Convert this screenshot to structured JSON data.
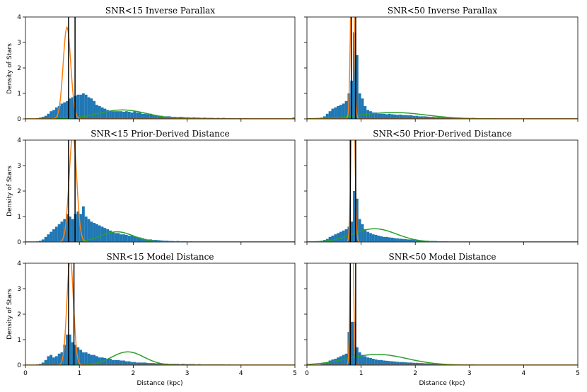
{
  "figure": {
    "ylabel": "Density of Stars",
    "xlabel": "Distance (kpc)",
    "xlim": [
      0,
      5
    ],
    "ylim": [
      0,
      4
    ],
    "xticks": [
      0,
      1,
      2,
      3,
      4,
      5
    ],
    "yticks": [
      0,
      1,
      2,
      3,
      4
    ],
    "colors": {
      "hist": "#1f77b4",
      "cluster": "#ff7f0e",
      "field": "#2ca02c",
      "marker": "#000000"
    }
  },
  "chart_data": [
    {
      "type": "bar",
      "title": "SNR<15 Inverse Parallax",
      "bin_start": 0.2,
      "bin_width": 0.05,
      "values": [
        0.03,
        0.05,
        0.08,
        0.12,
        0.2,
        0.3,
        0.35,
        0.45,
        0.5,
        0.6,
        0.65,
        0.7,
        0.8,
        0.85,
        0.9,
        0.95,
        0.95,
        1.0,
        0.95,
        0.85,
        0.8,
        0.7,
        0.55,
        0.5,
        0.45,
        0.4,
        0.35,
        0.3,
        0.3,
        0.3,
        0.3,
        0.3,
        0.28,
        0.3,
        0.28,
        0.25,
        0.3,
        0.25,
        0.25,
        0.2,
        0.2,
        0.18,
        0.2,
        0.15,
        0.15,
        0.12,
        0.12,
        0.1,
        0.1,
        0.1,
        0.08,
        0.08,
        0.07,
        0.08,
        0.07,
        0.06,
        0.06,
        0.05,
        0.06,
        0.05,
        0.05,
        0.04,
        0.05,
        0.04,
        0.04,
        0.04,
        0.03,
        0.04,
        0.03,
        0.04,
        0.03,
        0.03,
        0.03,
        0.03,
        0.02,
        0.03,
        0.02,
        0.03,
        0.02,
        0.02,
        0.02,
        0.02,
        0.02,
        0.02,
        0.02,
        0.02,
        0.02,
        0.02,
        0.02,
        0.02,
        0.02,
        0.02,
        0.02,
        0.02,
        0.02,
        0.05
      ],
      "cluster_gaussian": {
        "amplitude": 3.6,
        "mean": 0.77,
        "sigma": 0.07
      },
      "field_gaussian": {
        "amplitude": 0.35,
        "mean": 1.8,
        "sigma": 0.45
      },
      "markers": [
        0.8,
        0.92
      ]
    },
    {
      "type": "bar",
      "title": "SNR<50 Inverse Parallax",
      "bin_start": 0.2,
      "bin_width": 0.05,
      "values": [
        0.03,
        0.05,
        0.1,
        0.2,
        0.3,
        0.4,
        0.45,
        0.5,
        0.55,
        0.6,
        0.7,
        1.0,
        1.5,
        3.4,
        2.5,
        1.0,
        0.8,
        0.5,
        0.35,
        0.3,
        0.25,
        0.25,
        0.2,
        0.2,
        0.2,
        0.18,
        0.2,
        0.18,
        0.17,
        0.16,
        0.17,
        0.15,
        0.15,
        0.14,
        0.14,
        0.12,
        0.12,
        0.1,
        0.1,
        0.1,
        0.09,
        0.08,
        0.08,
        0.07,
        0.07,
        0.06,
        0.06,
        0.05,
        0.05,
        0.05,
        0.05,
        0.04,
        0.05,
        0.04,
        0.04,
        0.04,
        0.03,
        0.04,
        0.03,
        0.03,
        0.03,
        0.03,
        0.03,
        0.03,
        0.02,
        0.03,
        0.02,
        0.02,
        0.02,
        0.02,
        0.02,
        0.02,
        0.02,
        0.02,
        0.02,
        0.02,
        0.02,
        0.02,
        0.02,
        0.02,
        0.02,
        0.02,
        0.02,
        0.02,
        0.02,
        0.02,
        0.02,
        0.02,
        0.02,
        0.02,
        0.02,
        0.02,
        0.02,
        0.02,
        0.02,
        0.02
      ],
      "cluster_gaussian": {
        "amplitude": 8.0,
        "mean": 0.84,
        "sigma": 0.03
      },
      "field_gaussian": {
        "amplitude": 0.25,
        "mean": 1.6,
        "sigma": 0.6
      },
      "markers": [
        0.82,
        0.9
      ]
    },
    {
      "type": "bar",
      "title": "SNR<15 Prior-Derived Distance",
      "bin_start": 0.2,
      "bin_width": 0.05,
      "values": [
        0.03,
        0.05,
        0.1,
        0.2,
        0.3,
        0.4,
        0.5,
        0.6,
        0.7,
        0.8,
        0.9,
        1.1,
        1.0,
        0.9,
        1.1,
        1.2,
        1.1,
        1.4,
        1.0,
        0.9,
        0.8,
        0.75,
        0.7,
        0.65,
        0.6,
        0.55,
        0.5,
        0.45,
        0.4,
        0.35,
        0.35,
        0.3,
        0.3,
        0.28,
        0.25,
        0.25,
        0.22,
        0.2,
        0.18,
        0.15,
        0.12,
        0.1,
        0.1,
        0.08,
        0.08,
        0.07,
        0.06,
        0.05,
        0.05,
        0.04,
        0.04,
        0.03,
        0.04,
        0.03,
        0.03,
        0.03,
        0.02,
        0.03,
        0.02,
        0.02,
        0.02,
        0.02,
        0.02,
        0.02,
        0.02,
        0.02,
        0.02,
        0.02,
        0.02,
        0.02,
        0.02,
        0.02,
        0.02,
        0.02,
        0.02,
        0.02,
        0.02,
        0.02,
        0.02,
        0.02,
        0.02,
        0.02,
        0.02,
        0.02,
        0.02,
        0.02,
        0.02,
        0.02,
        0.02,
        0.02,
        0.02,
        0.02,
        0.02,
        0.02,
        0.02,
        0.02
      ],
      "cluster_gaussian": {
        "amplitude": 4.2,
        "mean": 0.88,
        "sigma": 0.07
      },
      "field_gaussian": {
        "amplitude": 0.4,
        "mean": 1.7,
        "sigma": 0.3
      },
      "markers": [
        0.8,
        0.92
      ]
    },
    {
      "type": "bar",
      "title": "SNR<50 Prior-Derived Distance",
      "bin_start": 0.2,
      "bin_width": 0.05,
      "values": [
        0.02,
        0.05,
        0.08,
        0.12,
        0.2,
        0.25,
        0.3,
        0.35,
        0.4,
        0.45,
        0.5,
        0.6,
        0.8,
        2.0,
        1.7,
        0.9,
        0.7,
        0.5,
        0.4,
        0.35,
        0.3,
        0.28,
        0.25,
        0.22,
        0.2,
        0.2,
        0.18,
        0.17,
        0.15,
        0.14,
        0.13,
        0.12,
        0.11,
        0.1,
        0.1,
        0.09,
        0.08,
        0.07,
        0.06,
        0.05,
        0.05,
        0.04,
        0.04,
        0.04,
        0.03,
        0.03,
        0.03,
        0.03,
        0.02,
        0.02,
        0.02,
        0.02,
        0.02,
        0.02,
        0.02,
        0.02,
        0.02,
        0.02,
        0.02,
        0.02,
        0.02,
        0.02,
        0.02,
        0.02,
        0.02,
        0.02,
        0.02,
        0.02,
        0.02,
        0.02,
        0.02,
        0.02,
        0.02,
        0.02,
        0.02,
        0.02,
        0.02,
        0.02,
        0.02,
        0.02,
        0.02,
        0.02,
        0.02,
        0.02,
        0.02,
        0.02,
        0.02,
        0.02,
        0.02,
        0.02,
        0.02,
        0.02,
        0.02,
        0.02,
        0.02,
        0.02
      ],
      "cluster_gaussian": {
        "amplitude": 8.0,
        "mean": 0.85,
        "sigma": 0.03
      },
      "field_gaussian": {
        "amplitude": 0.52,
        "mean": 1.25,
        "sigma": 0.4
      },
      "markers": [
        0.8,
        0.9
      ]
    },
    {
      "type": "bar",
      "title": "SNR<15 Model Distance",
      "bin_start": 0.2,
      "bin_width": 0.05,
      "values": [
        0.03,
        0.05,
        0.1,
        0.2,
        0.35,
        0.4,
        0.3,
        0.35,
        0.45,
        0.5,
        0.8,
        1.2,
        1.2,
        0.9,
        0.8,
        0.7,
        0.6,
        0.5,
        0.5,
        0.45,
        0.4,
        0.4,
        0.35,
        0.3,
        0.3,
        0.28,
        0.25,
        0.25,
        0.2,
        0.2,
        0.2,
        0.18,
        0.18,
        0.15,
        0.15,
        0.12,
        0.12,
        0.1,
        0.1,
        0.1,
        0.1,
        0.08,
        0.08,
        0.08,
        0.07,
        0.07,
        0.06,
        0.06,
        0.06,
        0.05,
        0.05,
        0.05,
        0.05,
        0.04,
        0.05,
        0.04,
        0.04,
        0.04,
        0.04,
        0.03,
        0.04,
        0.03,
        0.03,
        0.03,
        0.03,
        0.03,
        0.03,
        0.03,
        0.03,
        0.03,
        0.02,
        0.03,
        0.02,
        0.02,
        0.02,
        0.02,
        0.02,
        0.02,
        0.02,
        0.02,
        0.02,
        0.02,
        0.02,
        0.02,
        0.02,
        0.02,
        0.02,
        0.02,
        0.02,
        0.02,
        0.02,
        0.02,
        0.02,
        0.02,
        0.02,
        0.02
      ],
      "cluster_gaussian": {
        "amplitude": 4.2,
        "mean": 0.83,
        "sigma": 0.06
      },
      "field_gaussian": {
        "amplitude": 0.52,
        "mean": 1.9,
        "sigma": 0.3
      },
      "markers": [
        0.8,
        0.9
      ]
    },
    {
      "type": "bar",
      "title": "SNR<50 Model Distance",
      "bin_start": 0.2,
      "bin_width": 0.05,
      "values": [
        0.02,
        0.05,
        0.08,
        0.12,
        0.18,
        0.22,
        0.25,
        0.3,
        0.35,
        0.4,
        0.45,
        1.3,
        1.7,
        1.7,
        0.7,
        0.5,
        0.4,
        0.35,
        0.3,
        0.28,
        0.25,
        0.22,
        0.2,
        0.2,
        0.18,
        0.17,
        0.16,
        0.15,
        0.14,
        0.13,
        0.12,
        0.12,
        0.11,
        0.1,
        0.1,
        0.09,
        0.09,
        0.08,
        0.08,
        0.07,
        0.07,
        0.06,
        0.06,
        0.05,
        0.05,
        0.05,
        0.04,
        0.04,
        0.04,
        0.04,
        0.03,
        0.03,
        0.03,
        0.03,
        0.03,
        0.03,
        0.03,
        0.03,
        0.02,
        0.02,
        0.02,
        0.02,
        0.02,
        0.02,
        0.02,
        0.02,
        0.02,
        0.02,
        0.02,
        0.02,
        0.02,
        0.02,
        0.02,
        0.02,
        0.02,
        0.02,
        0.02,
        0.02,
        0.02,
        0.02,
        0.02,
        0.02,
        0.02,
        0.02,
        0.02,
        0.02,
        0.02,
        0.02,
        0.02,
        0.02,
        0.02,
        0.02,
        0.02,
        0.02,
        0.02,
        0.02
      ],
      "cluster_gaussian": {
        "amplitude": 8.0,
        "mean": 0.83,
        "sigma": 0.025
      },
      "field_gaussian": {
        "amplitude": 0.42,
        "mean": 1.3,
        "sigma": 0.55
      },
      "markers": [
        0.8,
        0.9
      ]
    }
  ]
}
